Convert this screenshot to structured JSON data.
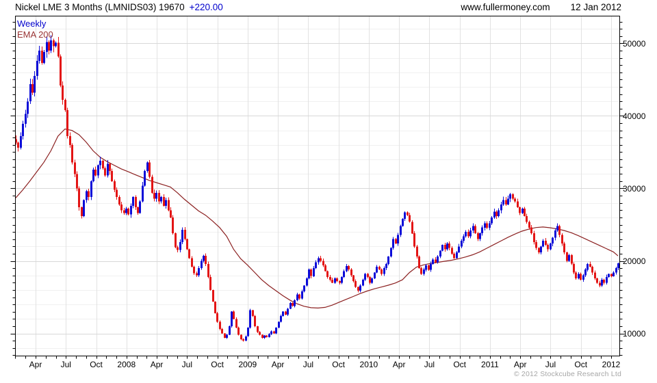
{
  "header": {
    "title": "Nickel LME 3 Months (LMNIDS03) 19670",
    "change": "+220.00",
    "website": "www.fullermoney.com",
    "date": "12 Jan 2012"
  },
  "legend": {
    "weekly": "Weekly",
    "ema": "EMA 200"
  },
  "footer": {
    "copyright": "© 2012 Stockcube Research Ltd"
  },
  "colors": {
    "up_candle": "#0b0bd8",
    "down_candle": "#e31414",
    "ema_line": "#8b2020",
    "change_text": "#0000cc",
    "weekly_label": "#0000cc",
    "ema_label": "#993333",
    "copyright_text": "#a6a6a6",
    "axis": "#000000",
    "tick_text": "#000000",
    "grid_minor": "#f0f0f0",
    "grid_major": "#d8d8d8",
    "grid_vertical": "#e2e2e2"
  },
  "chart_data": {
    "type": "candlestick",
    "title": "Nickel LME 3 Months (LMNIDS03)",
    "interval": "Weekly",
    "overlay": "EMA 200",
    "last_price": 19670,
    "change": 220.0,
    "legend_entries": [
      "Weekly",
      "EMA 200"
    ],
    "x_ticks": [
      "Apr",
      "Jul",
      "Oct",
      "2008",
      "Apr",
      "Jul",
      "Oct",
      "2009",
      "Apr",
      "Jul",
      "Oct",
      "2010",
      "Apr",
      "Jul",
      "Oct",
      "2011",
      "Apr",
      "Jul",
      "Oct",
      "2012"
    ],
    "y_ticks": [
      50000,
      40000,
      30000,
      20000,
      10000
    ],
    "ylim": [
      6890,
      53770
    ],
    "y_minor_tick_step": 1000,
    "y_grid_minor_step": 2000,
    "y_grid_major_step": 10000,
    "grid": true,
    "legend_position": "top-left",
    "first_open": 36800,
    "closes": [
      36300,
      35600,
      37200,
      38900,
      40300,
      42000,
      44400,
      43200,
      45500,
      47600,
      49000,
      47300,
      48800,
      50200,
      49000,
      50400,
      49600,
      50100,
      48200,
      44200,
      42200,
      40800,
      37200,
      36000,
      33600,
      32000,
      30000,
      27400,
      26200,
      28400,
      29600,
      28800,
      31000,
      32600,
      31800,
      33200,
      33800,
      32800,
      31800,
      33400,
      32400,
      31000,
      29800,
      28800,
      27800,
      27000,
      26600,
      27200,
      26400,
      27600,
      28800,
      27400,
      26600,
      28200,
      30400,
      32400,
      33600,
      31600,
      29400,
      28600,
      29400,
      28200,
      28800,
      27600,
      28400,
      27000,
      26000,
      23800,
      21900,
      21500,
      22600,
      24300,
      23000,
      21600,
      20400,
      19200,
      18300,
      18000,
      19000,
      20000,
      20700,
      19600,
      17800,
      16000,
      14400,
      12800,
      11600,
      10600,
      10000,
      9400,
      9800,
      11000,
      13000,
      12000,
      10800,
      9800,
      9200,
      9000,
      9600,
      10800,
      13200,
      12400,
      11000,
      10200,
      9800,
      9400,
      9700,
      9500,
      9900,
      10300,
      10000,
      10800,
      11600,
      12400,
      13000,
      12600,
      13400,
      14200,
      13800,
      14600,
      15400,
      14800,
      15800,
      16600,
      17600,
      18800,
      17900,
      19000,
      19800,
      20400,
      20000,
      19400,
      18600,
      17800,
      17400,
      17000,
      17600,
      17200,
      17000,
      17800,
      18600,
      19300,
      18800,
      18000,
      17200,
      16400,
      15900,
      16600,
      17400,
      18200,
      17800,
      17000,
      17600,
      18400,
      19200,
      18800,
      18200,
      19000,
      19600,
      20600,
      21800,
      23000,
      22400,
      23600,
      24800,
      25800,
      26700,
      26300,
      25400,
      23800,
      22000,
      20600,
      19000,
      18200,
      18800,
      19400,
      18800,
      19600,
      20200,
      19800,
      20600,
      21400,
      22200,
      21600,
      22400,
      21800,
      21000,
      20400,
      21200,
      22000,
      22800,
      23400,
      24000,
      23400,
      24200,
      24800,
      23800,
      23000,
      23800,
      24600,
      25200,
      24600,
      25200,
      26000,
      26800,
      26200,
      27000,
      27800,
      28400,
      27800,
      28600,
      29200,
      28600,
      28200,
      27400,
      26600,
      27200,
      26200,
      25400,
      24600,
      23800,
      22600,
      21800,
      21200,
      22000,
      22800,
      22200,
      21600,
      22400,
      23200,
      24200,
      24800,
      23600,
      22400,
      21200,
      20000,
      20800,
      19600,
      18400,
      17600,
      18200,
      17400,
      18000,
      18800,
      19600,
      19200,
      18400,
      17600,
      17000,
      16600,
      17400,
      17000,
      17800,
      18200,
      17900,
      18400,
      19000,
      19670
    ],
    "ema_points": [
      [
        0,
        28700
      ],
      [
        3,
        29800
      ],
      [
        6,
        31000
      ],
      [
        9,
        32300
      ],
      [
        12,
        33600
      ],
      [
        15,
        35200
      ],
      [
        18,
        37200
      ],
      [
        21,
        38200
      ],
      [
        24,
        38000
      ],
      [
        27,
        37400
      ],
      [
        30,
        36400
      ],
      [
        33,
        35200
      ],
      [
        36,
        34300
      ],
      [
        39,
        33700
      ],
      [
        42,
        33200
      ],
      [
        45,
        32700
      ],
      [
        48,
        32300
      ],
      [
        51,
        31900
      ],
      [
        54,
        31500
      ],
      [
        57,
        31100
      ],
      [
        60,
        30800
      ],
      [
        63,
        30500
      ],
      [
        66,
        30200
      ],
      [
        69,
        29400
      ],
      [
        72,
        28500
      ],
      [
        75,
        27700
      ],
      [
        78,
        26900
      ],
      [
        81,
        26300
      ],
      [
        84,
        25500
      ],
      [
        87,
        24600
      ],
      [
        90,
        23400
      ],
      [
        93,
        21600
      ],
      [
        96,
        20300
      ],
      [
        99,
        19400
      ],
      [
        102,
        18400
      ],
      [
        105,
        17400
      ],
      [
        108,
        16600
      ],
      [
        111,
        15900
      ],
      [
        114,
        15200
      ],
      [
        117,
        14600
      ],
      [
        120,
        14100
      ],
      [
        123,
        13750
      ],
      [
        126,
        13550
      ],
      [
        129,
        13500
      ],
      [
        132,
        13600
      ],
      [
        135,
        13900
      ],
      [
        138,
        14300
      ],
      [
        141,
        14700
      ],
      [
        144,
        15100
      ],
      [
        147,
        15500
      ],
      [
        150,
        15850
      ],
      [
        153,
        16150
      ],
      [
        156,
        16400
      ],
      [
        159,
        16650
      ],
      [
        162,
        16950
      ],
      [
        165,
        17400
      ],
      [
        168,
        18400
      ],
      [
        171,
        19150
      ],
      [
        174,
        19450
      ],
      [
        177,
        19650
      ],
      [
        180,
        19800
      ],
      [
        183,
        19950
      ],
      [
        186,
        20100
      ],
      [
        189,
        20300
      ],
      [
        192,
        20550
      ],
      [
        195,
        20850
      ],
      [
        198,
        21250
      ],
      [
        201,
        21750
      ],
      [
        204,
        22250
      ],
      [
        207,
        22750
      ],
      [
        210,
        23250
      ],
      [
        213,
        23700
      ],
      [
        216,
        24100
      ],
      [
        219,
        24400
      ],
      [
        222,
        24600
      ],
      [
        225,
        24680
      ],
      [
        228,
        24580
      ],
      [
        231,
        24420
      ],
      [
        234,
        24200
      ],
      [
        237,
        23900
      ],
      [
        240,
        23500
      ],
      [
        243,
        23050
      ],
      [
        246,
        22600
      ],
      [
        249,
        22150
      ],
      [
        252,
        21700
      ],
      [
        255,
        21250
      ],
      [
        257,
        20700
      ]
    ]
  }
}
